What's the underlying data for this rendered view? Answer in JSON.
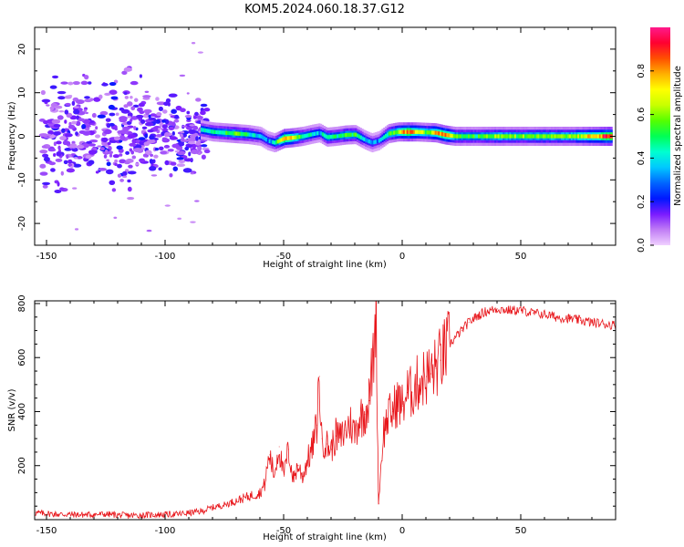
{
  "title": "KOM5.2024.060.18.37.G12",
  "chart_data": [
    {
      "type": "heatmap",
      "xlabel": "Height of straight line (km)",
      "ylabel": "Frequency (Hz)",
      "xlim": [
        -155,
        90
      ],
      "ylim": [
        -25,
        25
      ],
      "x_ticks": [
        -150,
        -100,
        -50,
        0,
        50
      ],
      "y_ticks": [
        -20,
        -10,
        0,
        10,
        20
      ],
      "grid": false,
      "colorbar": {
        "label": "Normalized spectral amplitude",
        "range": [
          0.0,
          1.0
        ],
        "ticks": [
          0.0,
          0.2,
          0.4,
          0.6,
          0.8
        ],
        "colormap": [
          "#f0d0ff",
          "#c07cf5",
          "#7a1bff",
          "#0018ff",
          "#0066ff",
          "#00c8ff",
          "#00ffd0",
          "#00ff55",
          "#55ff00",
          "#c8ff00",
          "#ffff00",
          "#ffb000",
          "#ff5000",
          "#ff0030",
          "#ff1a8c"
        ]
      },
      "ridge": {
        "x": [
          -85,
          -80,
          -75,
          -70,
          -65,
          -60,
          -57,
          -54,
          -50,
          -46,
          -42,
          -38,
          -35,
          -32,
          -28,
          -24,
          -20,
          -16,
          -13,
          -10,
          -6,
          -2,
          2,
          6,
          10,
          14,
          18,
          22,
          30,
          40,
          50,
          60,
          70,
          80,
          88
        ],
        "y": [
          1.5,
          1.0,
          0.8,
          0.6,
          0.4,
          0.0,
          -1.0,
          -1.5,
          -0.5,
          -0.3,
          0.0,
          0.5,
          0.8,
          -0.2,
          0.0,
          0.3,
          0.4,
          -0.8,
          -1.5,
          -1.0,
          0.6,
          1.0,
          1.0,
          1.0,
          0.9,
          0.8,
          0.3,
          0.0,
          0.0,
          0.0,
          0.0,
          0.0,
          0.0,
          0.0,
          0.0
        ],
        "amplitude": [
          0.4,
          0.45,
          0.5,
          0.55,
          0.45,
          0.35,
          0.3,
          0.4,
          0.85,
          0.7,
          0.45,
          0.4,
          0.35,
          0.5,
          0.45,
          0.55,
          0.5,
          0.35,
          0.3,
          0.3,
          0.55,
          0.65,
          0.9,
          0.7,
          0.6,
          0.75,
          0.85,
          0.55,
          0.5,
          0.6,
          0.55,
          0.6,
          0.6,
          0.75,
          0.95
        ]
      }
    },
    {
      "type": "line",
      "xlabel": "Height of straight line (km)",
      "ylabel": "SNR (v/v)",
      "xlim": [
        -155,
        90
      ],
      "ylim": [
        0,
        810
      ],
      "x_ticks": [
        -150,
        -100,
        -50,
        0,
        50
      ],
      "y_ticks": [
        200,
        400,
        600,
        800
      ],
      "color": "#e8161b",
      "grid": false,
      "series": [
        {
          "x": [
            -155,
            -145,
            -135,
            -125,
            -115,
            -105,
            -95,
            -85,
            -80,
            -75,
            -70,
            -65,
            -60,
            -58,
            -56,
            -54,
            -52,
            -50,
            -48,
            -46,
            -44,
            -42,
            -40,
            -38,
            -36,
            -35,
            -34,
            -32,
            -30,
            -28,
            -26,
            -24,
            -22,
            -20,
            -18,
            -16,
            -14,
            -12,
            -11,
            -10,
            -8,
            -6,
            -4,
            -2,
            0,
            2,
            4,
            6,
            8,
            10,
            12,
            14,
            16,
            18,
            20,
            22,
            25,
            28,
            31,
            35,
            40,
            45,
            50,
            55,
            60,
            65,
            70,
            75,
            80,
            85,
            90
          ],
          "y": [
            25,
            20,
            18,
            20,
            15,
            18,
            20,
            30,
            45,
            55,
            70,
            85,
            100,
            130,
            240,
            165,
            270,
            160,
            260,
            150,
            200,
            160,
            220,
            260,
            350,
            530,
            300,
            280,
            260,
            310,
            300,
            330,
            360,
            320,
            380,
            390,
            440,
            620,
            800,
            60,
            320,
            380,
            400,
            440,
            420,
            470,
            470,
            500,
            520,
            530,
            540,
            560,
            590,
            620,
            650,
            670,
            700,
            730,
            750,
            770,
            780,
            775,
            775,
            765,
            760,
            750,
            745,
            738,
            730,
            725,
            720
          ]
        }
      ]
    }
  ]
}
